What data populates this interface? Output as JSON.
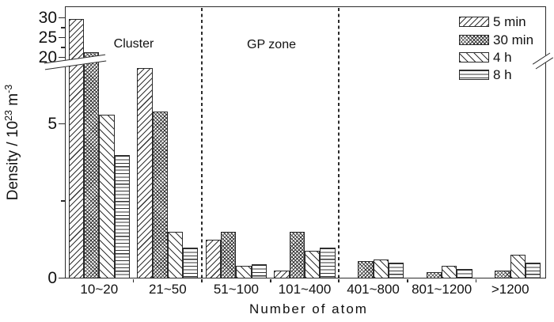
{
  "figure": {
    "y_axis": {
      "title": {
        "base": "Density / 10",
        "exponent": "23",
        "unit": " m",
        "unit_exponent": "-3"
      },
      "major_ticks": [
        {
          "value": 0,
          "label": "0"
        },
        {
          "value": 5,
          "label": "5"
        },
        {
          "value": 20,
          "label": "20"
        },
        {
          "value": 25,
          "label": "25"
        },
        {
          "value": 30,
          "label": "30"
        }
      ],
      "minor_ticks": [
        2.5,
        22.5,
        27.5
      ]
    },
    "x_axis": {
      "title": "Number of atom"
    }
  },
  "chart_data": {
    "type": "bar",
    "title": "",
    "xlabel": "Number of atom",
    "ylabel": "Density / 10^23 m^-3",
    "categories": [
      "10~20",
      "21~50",
      "51~100",
      "101~400",
      "401~800",
      "801~1200",
      ">1200"
    ],
    "series": [
      {
        "name": "5 min",
        "pattern": "diagonal-forward",
        "values": [
          29.8,
          6.8,
          1.25,
          0.25,
          0,
          0,
          0
        ]
      },
      {
        "name": "30 min",
        "pattern": "crosshatch",
        "values": [
          21.4,
          5.4,
          1.5,
          1.5,
          0.55,
          0.2,
          0.25
        ]
      },
      {
        "name": "4 h",
        "pattern": "diagonal-back",
        "values": [
          5.3,
          1.5,
          0.4,
          0.9,
          0.6,
          0.4,
          0.75
        ]
      },
      {
        "name": "8 h",
        "pattern": "horizontal",
        "values": [
          4.0,
          1.0,
          0.45,
          1.0,
          0.5,
          0.3,
          0.5
        ]
      }
    ],
    "y_axis_break": {
      "lower_segment_max": 7,
      "upper_segment_min": 20,
      "upper_segment_max": 30
    },
    "y_tick_values": [
      0,
      5,
      20,
      25,
      30
    ],
    "regions": [
      {
        "label": "Cluster",
        "span": [
          "10~20",
          "21~50"
        ]
      },
      {
        "label": "GP zone",
        "span": [
          "51~100",
          "101~400"
        ]
      }
    ],
    "separators_after_category_index": [
      1,
      3
    ],
    "legend_position": "top-right",
    "grid": false,
    "colors": {
      "ink": "#2b2b2b",
      "background": "#ffffff"
    }
  }
}
